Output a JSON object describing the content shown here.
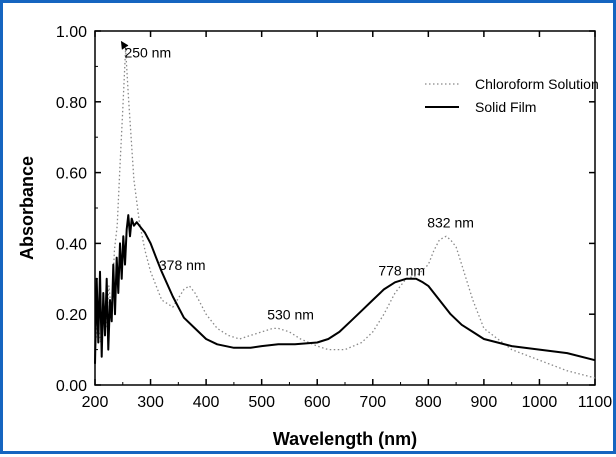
{
  "chart_data": {
    "type": "line",
    "xlabel": "Wavelength (nm)",
    "ylabel": "Absorbance",
    "xlim": [
      200,
      1100
    ],
    "ylim": [
      0,
      1.0
    ],
    "x_ticks": [
      "200",
      "300",
      "400",
      "500",
      "600",
      "700",
      "800",
      "900",
      "1000",
      "1100"
    ],
    "y_ticks": [
      "0.00",
      "0.20",
      "0.40",
      "0.60",
      "0.80",
      "1.00"
    ],
    "grid": false,
    "legend_position": "top-right",
    "frame_color": "#1565c0",
    "series": [
      {
        "name": "Chloroform Solution",
        "style": "dotted",
        "color": "#888888",
        "x": [
          200,
          205,
          210,
          215,
          220,
          225,
          230,
          235,
          240,
          245,
          250,
          255,
          260,
          265,
          270,
          280,
          290,
          300,
          320,
          340,
          360,
          370,
          380,
          400,
          420,
          440,
          460,
          480,
          500,
          520,
          530,
          550,
          570,
          600,
          620,
          650,
          680,
          700,
          720,
          740,
          760,
          780,
          800,
          810,
          820,
          832,
          840,
          850,
          860,
          880,
          900,
          950,
          1000,
          1050,
          1100
        ],
        "y": [
          0.1,
          0.18,
          0.12,
          0.22,
          0.16,
          0.28,
          0.2,
          0.38,
          0.45,
          0.62,
          0.78,
          0.95,
          0.82,
          0.7,
          0.58,
          0.46,
          0.38,
          0.32,
          0.24,
          0.22,
          0.27,
          0.28,
          0.26,
          0.2,
          0.16,
          0.14,
          0.13,
          0.14,
          0.15,
          0.16,
          0.16,
          0.15,
          0.13,
          0.11,
          0.1,
          0.1,
          0.12,
          0.15,
          0.2,
          0.26,
          0.3,
          0.31,
          0.34,
          0.38,
          0.41,
          0.42,
          0.41,
          0.39,
          0.34,
          0.24,
          0.16,
          0.1,
          0.07,
          0.04,
          0.02
        ]
      },
      {
        "name": "Solid Film",
        "style": "solid",
        "color": "#000000",
        "x": [
          200,
          203,
          206,
          209,
          212,
          215,
          218,
          221,
          224,
          227,
          230,
          233,
          236,
          239,
          242,
          245,
          248,
          251,
          254,
          257,
          260,
          263,
          266,
          270,
          275,
          280,
          290,
          300,
          310,
          320,
          340,
          360,
          380,
          400,
          420,
          450,
          480,
          500,
          530,
          560,
          600,
          620,
          640,
          660,
          680,
          700,
          720,
          740,
          760,
          778,
          790,
          800,
          820,
          840,
          860,
          880,
          900,
          950,
          1000,
          1050,
          1100
        ],
        "y": [
          0.06,
          0.3,
          0.12,
          0.32,
          0.08,
          0.26,
          0.14,
          0.3,
          0.1,
          0.24,
          0.18,
          0.34,
          0.2,
          0.36,
          0.26,
          0.4,
          0.3,
          0.42,
          0.34,
          0.44,
          0.48,
          0.42,
          0.47,
          0.45,
          0.46,
          0.45,
          0.43,
          0.4,
          0.36,
          0.32,
          0.25,
          0.19,
          0.16,
          0.13,
          0.115,
          0.105,
          0.105,
          0.11,
          0.115,
          0.115,
          0.12,
          0.13,
          0.15,
          0.18,
          0.21,
          0.24,
          0.27,
          0.29,
          0.3,
          0.3,
          0.29,
          0.28,
          0.24,
          0.2,
          0.17,
          0.15,
          0.13,
          0.11,
          0.1,
          0.09,
          0.07
        ]
      }
    ],
    "annotations": [
      {
        "text": "250 nm",
        "x": 253,
        "y": 0.925,
        "arrow_to": [
          245,
          0.97
        ]
      },
      {
        "text": "378 nm",
        "x": 315,
        "y": 0.325
      },
      {
        "text": "530 nm",
        "x": 510,
        "y": 0.185
      },
      {
        "text": "778 nm",
        "x": 710,
        "y": 0.31
      },
      {
        "text": "832 nm",
        "x": 798,
        "y": 0.445
      }
    ]
  }
}
